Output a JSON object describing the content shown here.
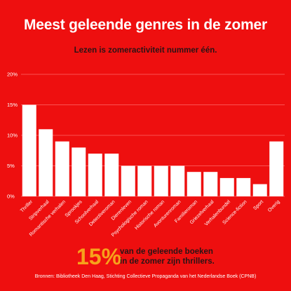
{
  "title": "Meest geleende genres in de zomer",
  "subtitle": "Lezen is zomeractiviteit nummer één.",
  "callout": {
    "number": "15%",
    "line1": "van de geleende boeken",
    "line2": "in de zomer zijn thrillers."
  },
  "sources": "Bronnen: Bibliotheek Den Haag, Stichting Collectieve Propaganda van het Nederlandse Boek (CPNB)",
  "colors": {
    "background": "#ee0f0f",
    "bars": "#ffffff",
    "grid": "#ff6a6a",
    "accent": "#f7a21b",
    "dark_text": "#2a1416"
  },
  "chart_data": {
    "type": "bar",
    "categories": [
      "Thriller",
      "Stripverhaal",
      "Romantische verhalen",
      "Sprookjes",
      "Schoolverhaal",
      "Detectiveroman",
      "Dierenleven",
      "Psychologische roman",
      "Historische roman",
      "Avonturenroman",
      "Familieroman",
      "Griezelverhaal",
      "Verhalenbundel",
      "Science-fiction",
      "Sport",
      "Overig"
    ],
    "values": [
      15,
      11,
      9,
      8,
      7,
      7,
      5,
      5,
      5,
      5,
      4,
      4,
      3,
      3,
      2,
      9
    ],
    "ylim": [
      0,
      20
    ],
    "yticks": [
      "0%",
      "5%",
      "10%",
      "15%",
      "20%"
    ],
    "xlabel": "",
    "ylabel": "",
    "grid": true,
    "legend": "none"
  }
}
